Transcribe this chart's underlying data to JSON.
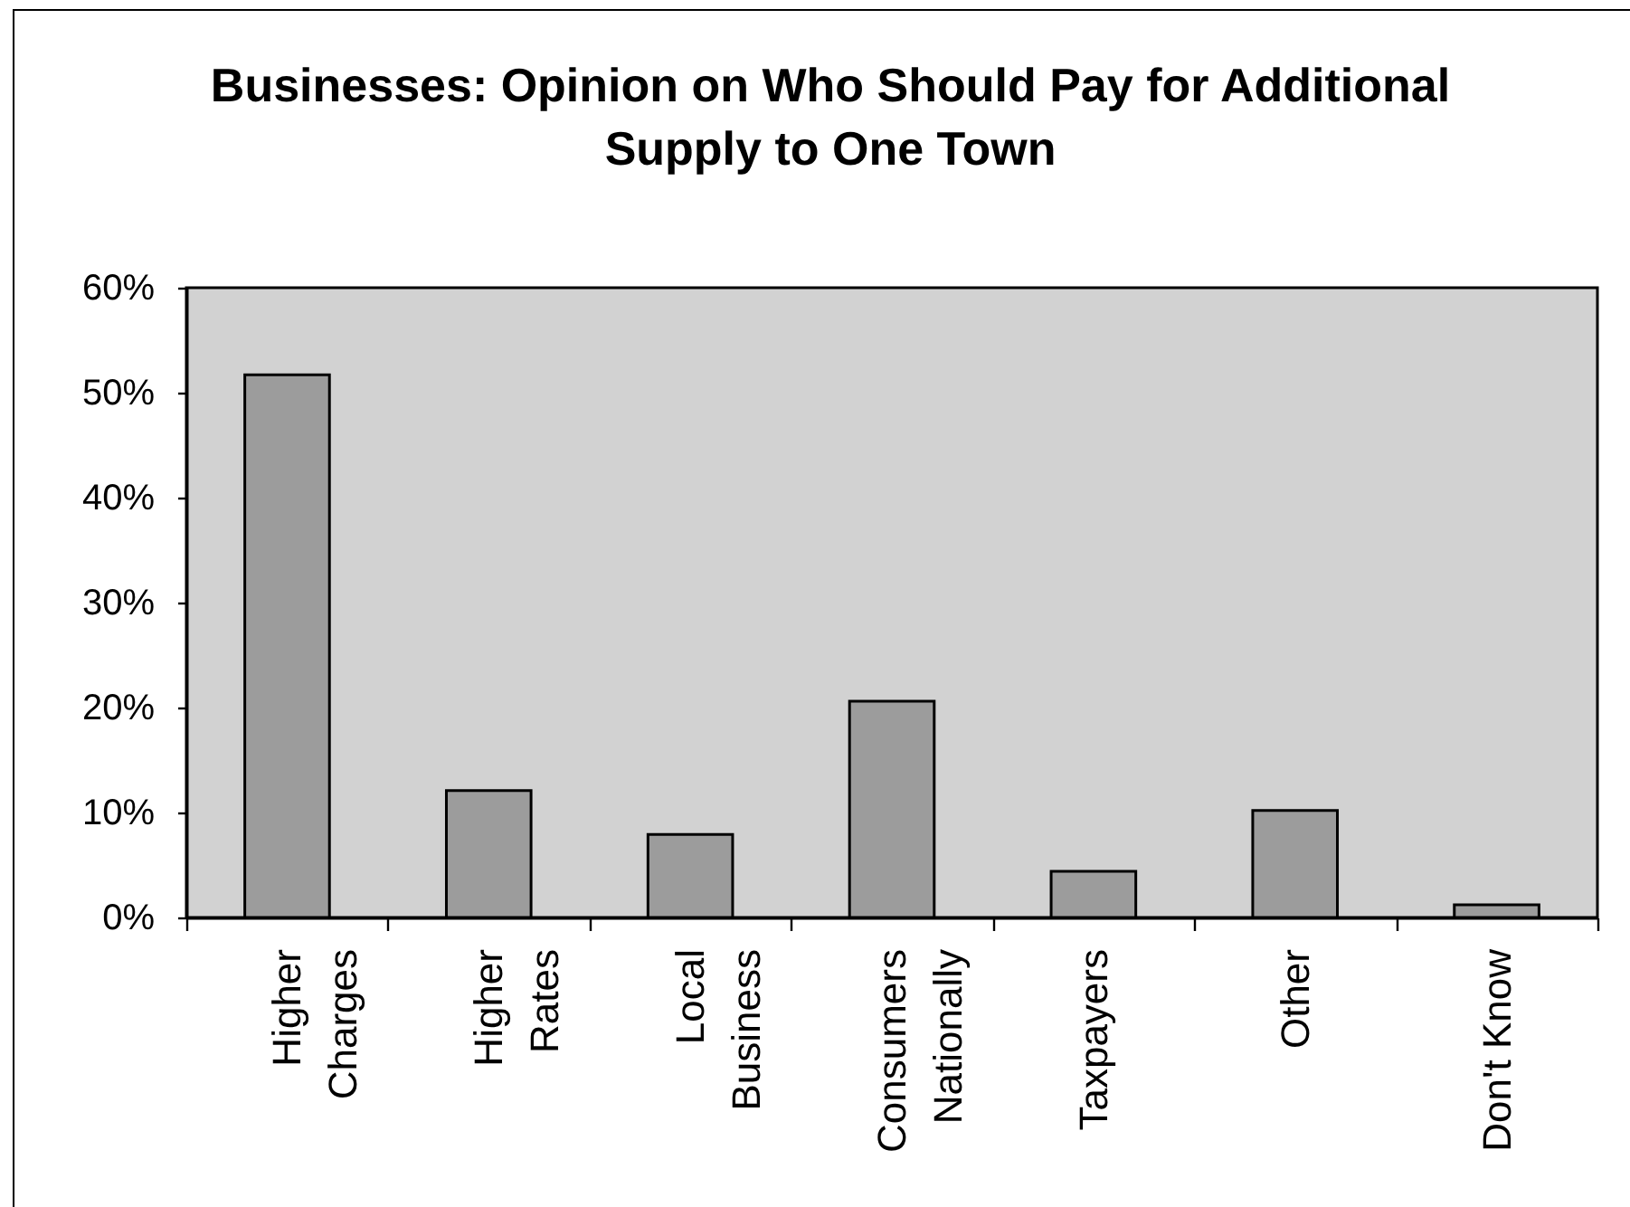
{
  "chart_data": {
    "type": "bar",
    "title": "Businesses: Opinion on Who Should Pay for Additional Supply to One Town",
    "categories": [
      "Higher Charges",
      "Higher Rates",
      "Local Business",
      "Consumers Nationally",
      "Taxpayers",
      "Other",
      "Don't Know"
    ],
    "values": [
      51.7,
      12.1,
      7.9,
      20.6,
      4.4,
      10.2,
      1.2
    ],
    "color": "#9c9c9c",
    "ylim": [
      0,
      60
    ],
    "yticks": [
      {
        "value": 0,
        "label": "0%"
      },
      {
        "value": 10,
        "label": "10%"
      },
      {
        "value": 20,
        "label": "20%"
      },
      {
        "value": 30,
        "label": "30%"
      },
      {
        "value": 40,
        "label": "40%"
      },
      {
        "value": 50,
        "label": "50%"
      },
      {
        "value": 60,
        "label": "60%"
      }
    ]
  }
}
